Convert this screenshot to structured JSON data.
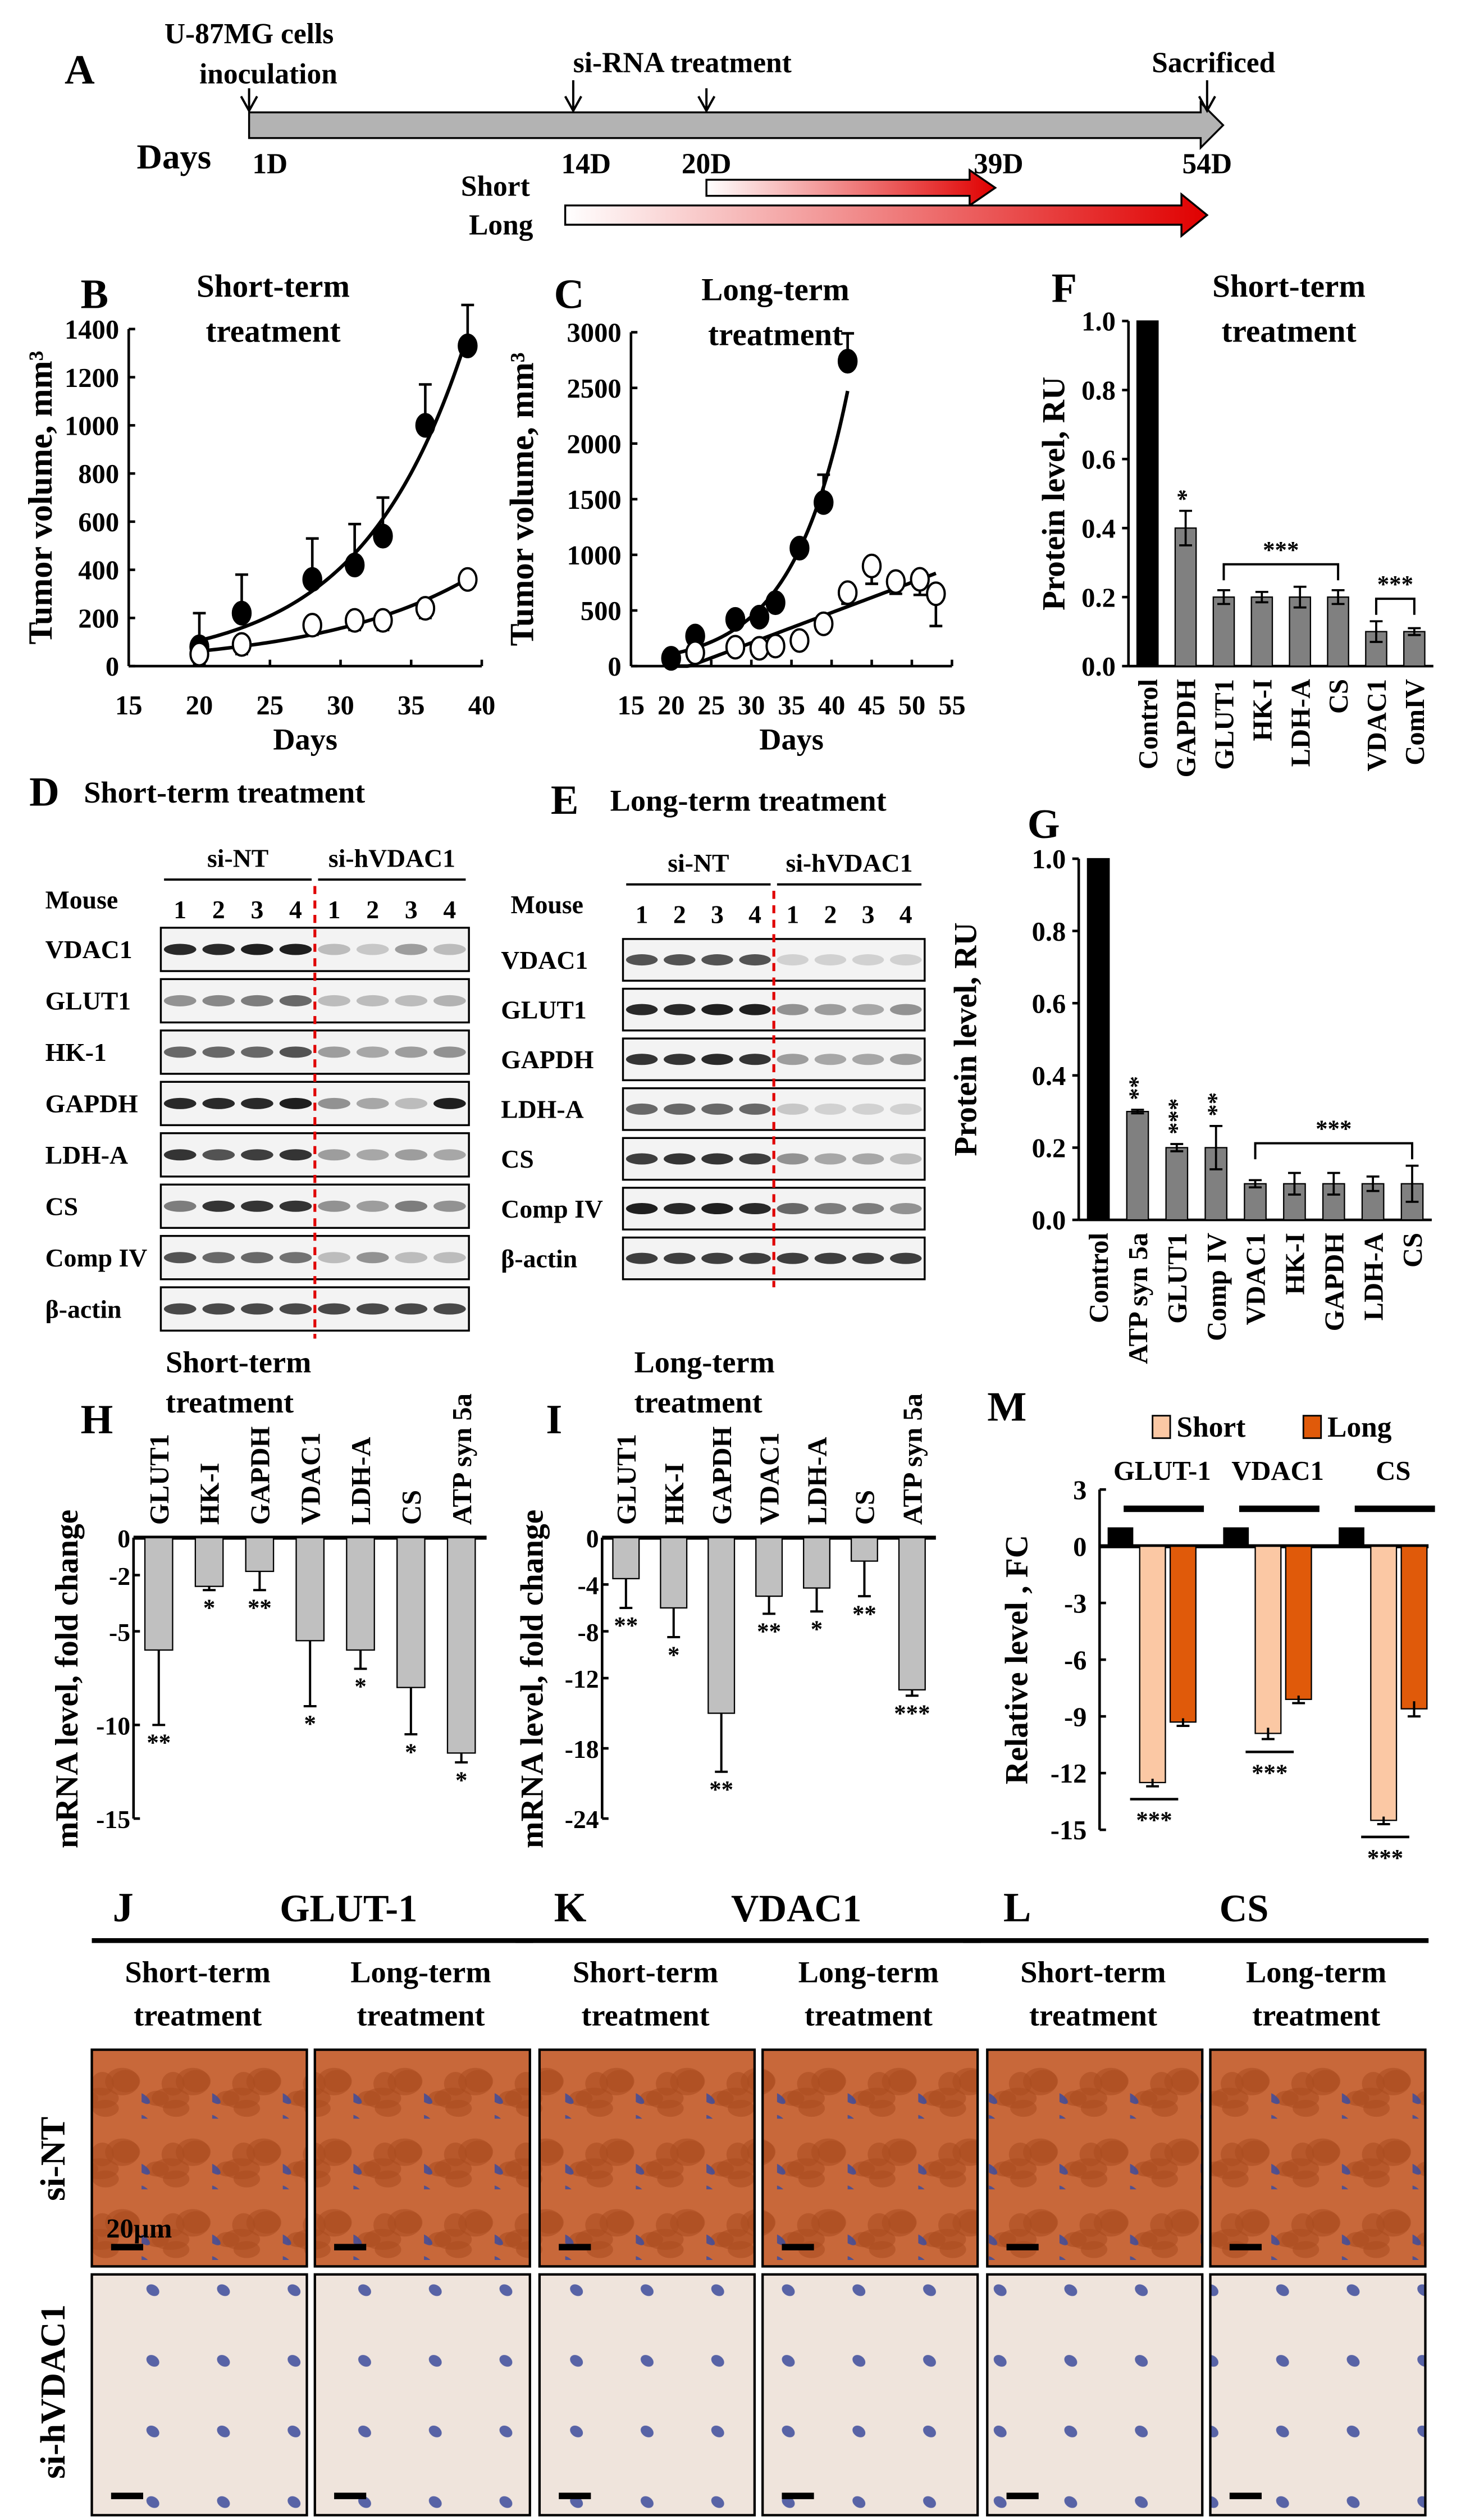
{
  "panel_letters": {
    "A": "A",
    "B": "B",
    "C": "C",
    "D": "D",
    "E": "E",
    "F": "F",
    "G": "G",
    "H": "H",
    "I": "I",
    "J": "J",
    "K": "K",
    "L": "L",
    "M": "M"
  },
  "timeline": {
    "days_label": "Days",
    "inoculation_line1": "U-87MG cells",
    "inoculation_line2": "inoculation",
    "treatment": "si-RNA treatment",
    "sacrificed": "Sacrificed",
    "ticks": [
      "1D",
      "14D",
      "20D",
      "39D",
      "54D"
    ],
    "short": "Short",
    "long": "Long",
    "colors": {
      "arrow": "#b3b3b3",
      "treatment_end": "#e00000"
    }
  },
  "blots": [
    {
      "title": "Short-term treatment",
      "groups": [
        "si-NT",
        "si-hVDAC1"
      ],
      "mouse_label": "Mouse",
      "lanes": [
        "1",
        "2",
        "3",
        "4",
        "1",
        "2",
        "3",
        "4"
      ],
      "proteins": [
        "VDAC1",
        "GLUT1",
        "HK-1",
        "GAPDH",
        "LDH-A",
        "CS",
        "Comp IV",
        "β-actin"
      ],
      "intensity": [
        [
          0.9,
          0.9,
          0.95,
          0.95,
          0.2,
          0.15,
          0.35,
          0.2
        ],
        [
          0.4,
          0.45,
          0.5,
          0.6,
          0.2,
          0.2,
          0.2,
          0.25
        ],
        [
          0.6,
          0.6,
          0.6,
          0.7,
          0.35,
          0.3,
          0.35,
          0.4
        ],
        [
          0.9,
          0.9,
          0.9,
          0.95,
          0.4,
          0.3,
          0.2,
          0.95
        ],
        [
          0.85,
          0.7,
          0.8,
          0.85,
          0.35,
          0.3,
          0.35,
          0.3
        ],
        [
          0.5,
          0.85,
          0.85,
          0.85,
          0.4,
          0.35,
          0.5,
          0.4
        ],
        [
          0.7,
          0.6,
          0.6,
          0.55,
          0.2,
          0.4,
          0.2,
          0.2
        ],
        [
          0.75,
          0.75,
          0.75,
          0.75,
          0.75,
          0.75,
          0.75,
          0.75
        ]
      ]
    },
    {
      "title": "Long-term treatment",
      "groups": [
        "si-NT",
        "si-hVDAC1"
      ],
      "mouse_label": "Mouse",
      "lanes": [
        "1",
        "2",
        "3",
        "4",
        "1",
        "2",
        "3",
        "4"
      ],
      "proteins": [
        "VDAC1",
        "GLUT1",
        "GAPDH",
        "LDH-A",
        "CS",
        "Comp IV",
        "β-actin"
      ],
      "intensity": [
        [
          0.7,
          0.7,
          0.7,
          0.7,
          0.1,
          0.1,
          0.1,
          0.1
        ],
        [
          0.9,
          0.9,
          0.95,
          0.95,
          0.4,
          0.35,
          0.3,
          0.4
        ],
        [
          0.85,
          0.85,
          0.9,
          0.85,
          0.35,
          0.3,
          0.3,
          0.35
        ],
        [
          0.6,
          0.6,
          0.6,
          0.6,
          0.15,
          0.1,
          0.1,
          0.1
        ],
        [
          0.8,
          0.85,
          0.85,
          0.8,
          0.4,
          0.3,
          0.3,
          0.2
        ],
        [
          0.95,
          0.9,
          0.95,
          0.9,
          0.6,
          0.5,
          0.5,
          0.4
        ],
        [
          0.8,
          0.8,
          0.8,
          0.8,
          0.8,
          0.8,
          0.8,
          0.8
        ]
      ]
    }
  ],
  "histology": {
    "panels": [
      {
        "letter": "J",
        "title": "GLUT-1"
      },
      {
        "letter": "K",
        "title": "VDAC1"
      },
      {
        "letter": "L",
        "title": "CS"
      }
    ],
    "sub_line1": [
      "Short-term",
      "Long-term"
    ],
    "sub_line2": "treatment",
    "rows": [
      "si-NT",
      "si-hVDAC1"
    ],
    "scale_bar": "20µm",
    "colors": {
      "dab": "#c8683a",
      "nuclei": "#3d4d9c",
      "background": "#efe4dc"
    }
  },
  "chart_data": [
    {
      "type": "scatter",
      "title_line1": "Short-term",
      "title_line2": "treatment",
      "xlabel": "Days",
      "ylabel": "Tumor volume, mm³",
      "xlim": [
        15,
        40
      ],
      "ylim": [
        0,
        1400
      ],
      "xticks": [
        "15",
        "20",
        "25",
        "30",
        "35",
        "40"
      ],
      "yticks": [
        "0",
        "200",
        "400",
        "600",
        "800",
        "1000",
        "1200",
        "1400"
      ],
      "series": [
        {
          "name": "si-NT",
          "marker": "filled",
          "fit": "exponential",
          "x": [
            20,
            23,
            28,
            31,
            33,
            36,
            39
          ],
          "y": [
            80,
            220,
            360,
            420,
            540,
            1000,
            1330
          ],
          "err": [
            140,
            160,
            170,
            170,
            160,
            170,
            170
          ]
        },
        {
          "name": "si-hVDAC1",
          "marker": "open",
          "fit": "exponential",
          "x": [
            20,
            23,
            28,
            31,
            33,
            36,
            39
          ],
          "y": [
            50,
            90,
            170,
            190,
            190,
            240,
            360
          ],
          "err": [
            40,
            40,
            40,
            40,
            40,
            40,
            30
          ]
        }
      ]
    },
    {
      "type": "scatter",
      "title_line1": "Long-term",
      "title_line2": "treatment",
      "xlabel": "Days",
      "ylabel": "Tumor volume, mm³",
      "xlim": [
        15,
        55
      ],
      "ylim": [
        0,
        3000
      ],
      "xticks": [
        "15",
        "20",
        "25",
        "30",
        "35",
        "40",
        "45",
        "50",
        "55"
      ],
      "yticks": [
        "0",
        "500",
        "1000",
        "1500",
        "2000",
        "2500",
        "3000"
      ],
      "series": [
        {
          "name": "si-NT",
          "marker": "filled",
          "fit": "exponential",
          "x": [
            20,
            23,
            28,
            31,
            33,
            36,
            39,
            42
          ],
          "y": [
            70,
            270,
            420,
            440,
            570,
            1060,
            1470,
            2740
          ],
          "err": [
            30,
            40,
            30,
            30,
            30,
            50,
            250,
            250
          ]
        },
        {
          "name": "si-hVDAC1",
          "marker": "open",
          "fit": "linear",
          "x": [
            23,
            28,
            31,
            33,
            36,
            39,
            42,
            45,
            48,
            51,
            53
          ],
          "y": [
            120,
            170,
            160,
            180,
            230,
            380,
            660,
            900,
            760,
            780,
            650
          ],
          "err": [
            30,
            30,
            30,
            30,
            30,
            30,
            100,
            160,
            110,
            140,
            290
          ]
        }
      ]
    },
    {
      "type": "bar",
      "title_line1": "Short-term",
      "title_line2": "treatment",
      "ylabel": "Protein level, RU",
      "ylim": [
        0,
        1.0
      ],
      "yticks": [
        "0.0",
        "0.2",
        "0.4",
        "0.6",
        "0.8",
        "1.0"
      ],
      "categories": [
        "Control",
        "GAPDH",
        "GLUT1",
        "HK-I",
        "LDH-A",
        "CS",
        "VDAC1",
        "ComIV"
      ],
      "values": [
        1.0,
        0.4,
        0.2,
        0.2,
        0.2,
        0.2,
        0.1,
        0.1
      ],
      "errors": [
        0,
        0.05,
        0.02,
        0.015,
        0.03,
        0.02,
        0.03,
        0.01
      ],
      "stars": [
        "",
        "*",
        "",
        "",
        "",
        "",
        "",
        ""
      ],
      "brackets": [
        {
          "from": 2,
          "to": 5,
          "label": "***"
        },
        {
          "from": 6,
          "to": 7,
          "label": "***"
        }
      ],
      "colors": {
        "control": "#000000",
        "bars": "#808080"
      }
    },
    {
      "type": "bar",
      "ylabel": "Protein level, RU",
      "ylim": [
        0,
        1.0
      ],
      "yticks": [
        "0.0",
        "0.2",
        "0.4",
        "0.6",
        "0.8",
        "1.0"
      ],
      "categories": [
        "Control",
        "ATP syn 5a",
        "GLUT1",
        "Comp IV",
        "VDAC1",
        "HK-I",
        "GAPDH",
        "LDH-A",
        "CS"
      ],
      "values": [
        1.0,
        0.3,
        0.2,
        0.2,
        0.1,
        0.1,
        0.1,
        0.1,
        0.1
      ],
      "errors": [
        0,
        0.005,
        0.01,
        0.06,
        0.01,
        0.03,
        0.03,
        0.02,
        0.05
      ],
      "stars": [
        "",
        "**",
        "***",
        "**",
        "",
        "",
        "",
        "",
        ""
      ],
      "brackets": [
        {
          "from": 4,
          "to": 8,
          "label": "***"
        }
      ],
      "colors": {
        "control": "#000000",
        "bars": "#808080"
      }
    },
    {
      "type": "bar",
      "title_line1": "Short-term",
      "title_line2": "treatment",
      "ylabel": "mRNA level, fold change",
      "ylim": [
        -15,
        0
      ],
      "yticks": [
        "0",
        "-2",
        "-5",
        "-10",
        "-15"
      ],
      "ytick_values": [
        0,
        -2,
        -5,
        -10,
        -15
      ],
      "categories": [
        "GLUT1",
        "HK-I",
        "GAPDH",
        "VDAC1",
        "LDH-A",
        "CS",
        "ATP syn 5a"
      ],
      "values": [
        -6,
        -2.6,
        -1.8,
        -5.5,
        -6,
        -8,
        -11.5
      ],
      "errors": [
        4,
        0.2,
        1,
        3.5,
        1,
        2.5,
        0.5
      ],
      "stars": [
        "**",
        "*",
        "**",
        "*",
        "*",
        "*",
        "*"
      ],
      "colors": {
        "bars": "#c0c0c0"
      }
    },
    {
      "type": "bar",
      "title_line1": "Long-term",
      "title_line2": "treatment",
      "ylabel": "mRNA level, fold change",
      "ylim": [
        -24,
        0
      ],
      "yticks": [
        "0",
        "-4",
        "-8",
        "-12",
        "-18",
        "-24"
      ],
      "ytick_values": [
        0,
        -4,
        -8,
        -12,
        -18,
        -24
      ],
      "categories": [
        "GLUT1",
        "HK-I",
        "GAPDH",
        "VDAC1",
        "LDH-A",
        "CS",
        "ATP syn 5a"
      ],
      "values": [
        -3.5,
        -6,
        -15,
        -5,
        -4.3,
        -2,
        -13
      ],
      "errors": [
        2.5,
        2.5,
        5,
        1.5,
        2,
        3,
        0.5
      ],
      "stars": [
        "**",
        "*",
        "**",
        "**",
        "*",
        "**",
        "***"
      ],
      "colors": {
        "bars": "#c0c0c0"
      }
    },
    {
      "type": "bar",
      "ylabel": "Relative level , FC",
      "ylim": [
        -15,
        3
      ],
      "yticks": [
        "3",
        "0",
        "-3",
        "-6",
        "-9",
        "-12",
        "-15"
      ],
      "categories": [
        "GLUT-1",
        "VDAC1",
        "CS"
      ],
      "legend": [
        "Short",
        "Long"
      ],
      "legend_position": "top",
      "control": [
        1,
        1,
        1
      ],
      "series": [
        {
          "name": "Short",
          "values": [
            -12.5,
            -9.9,
            -14.5
          ],
          "errors": [
            0.2,
            0.3,
            0.2
          ]
        },
        {
          "name": "Long",
          "values": [
            -9.3,
            -8.1,
            -8.6
          ],
          "errors": [
            0.2,
            0.2,
            0.4
          ]
        }
      ],
      "stars": [
        "***",
        "***",
        "***"
      ],
      "colors": {
        "control": "#000000",
        "short": "#fbc8a4",
        "long": "#e05a0a"
      }
    }
  ]
}
